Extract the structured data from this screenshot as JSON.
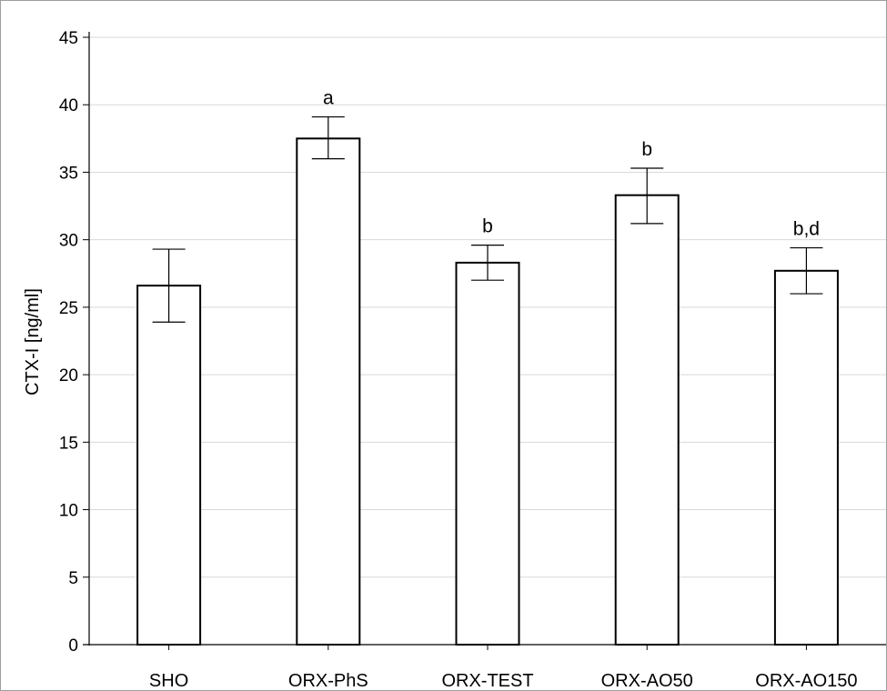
{
  "chart_data": {
    "type": "bar",
    "title": "",
    "xlabel": "",
    "ylabel": "CTX-I [ng/ml]",
    "ylim": [
      0,
      45
    ],
    "yticks": [
      0,
      5,
      10,
      15,
      20,
      25,
      30,
      35,
      40,
      45
    ],
    "grid": true,
    "categories": [
      "SHO",
      "ORX-PhS",
      "ORX-TEST",
      "ORX-AO50",
      "ORX-AO150"
    ],
    "values": [
      26.6,
      37.5,
      28.3,
      33.3,
      27.7
    ],
    "error_low": [
      23.9,
      36.0,
      27.0,
      31.2,
      26.0
    ],
    "error_high": [
      29.3,
      39.1,
      29.6,
      35.3,
      29.4
    ],
    "annotations": [
      "",
      "a",
      "b",
      "b",
      "b,d"
    ],
    "colors": {
      "bar_fill": "#ffffff",
      "bar_stroke": "#000000",
      "grid": "#d9d9d9"
    }
  }
}
